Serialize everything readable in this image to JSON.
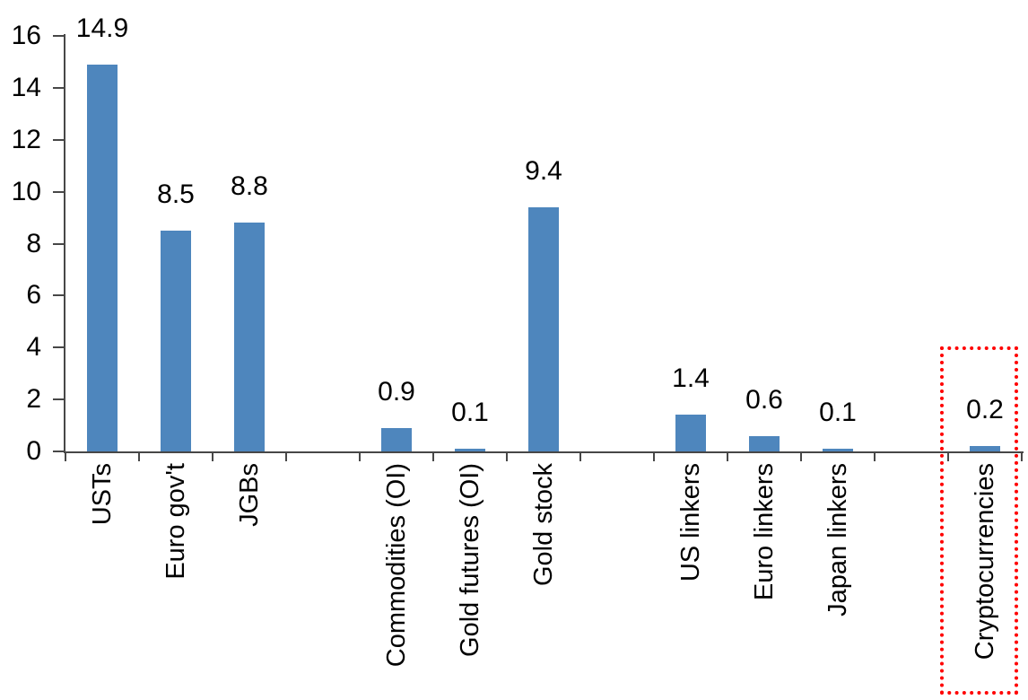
{
  "chart_data": {
    "type": "bar",
    "title": "",
    "xlabel": "",
    "ylabel": "",
    "categories": [
      "USTs",
      "Euro gov't",
      "JGBs",
      "Commodities (OI)",
      "Gold futures (OI)",
      "Gold stock",
      "US linkers",
      "Euro linkers",
      "Japan linkers",
      "Cryptocurrencies"
    ],
    "values": [
      14.9,
      8.5,
      8.8,
      0.9,
      0.1,
      9.4,
      1.4,
      0.6,
      0.1,
      0.2
    ],
    "value_labels": [
      "14.9",
      "8.5",
      "8.8",
      "0.9",
      "0.1",
      "9.4",
      "1.4",
      "0.6",
      "0.1",
      "0.2"
    ],
    "slot_indices": [
      0,
      1,
      2,
      4,
      5,
      6,
      8,
      9,
      10,
      12
    ],
    "total_slots": 13,
    "ylim": [
      0,
      16
    ],
    "y_tick_step": 2,
    "y_tick_labels": [
      "0",
      "2",
      "4",
      "6",
      "8",
      "10",
      "12",
      "14",
      "16"
    ],
    "grid": "off",
    "legend": "none",
    "bar_color": "#4E86BD",
    "axis_color": "#474747",
    "label_color": "#000000",
    "highlight": {
      "category": "Cryptocurrencies",
      "box_color": "#FF0000",
      "box_style": "dotted"
    }
  }
}
